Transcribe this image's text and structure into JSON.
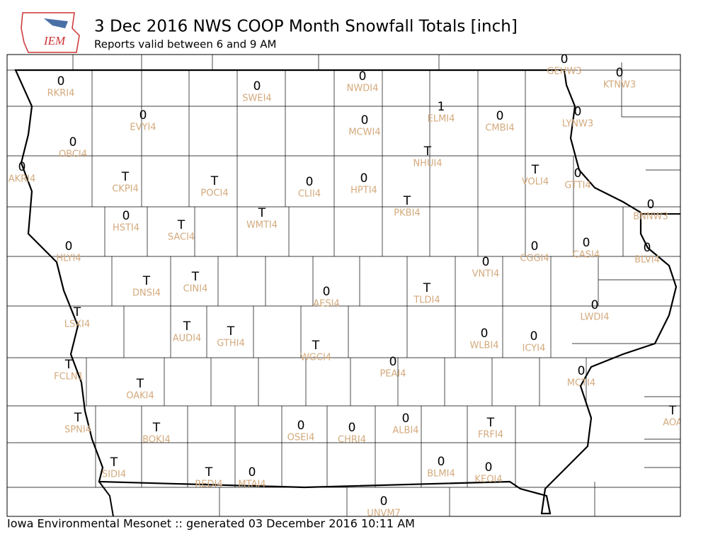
{
  "header": {
    "logo": "IEM",
    "title": "3 Dec 2016 NWS COOP Month Snowfall Totals [inch]",
    "subtitle": "Reports valid between 6 and 9 AM"
  },
  "footer": "Iowa Environmental Mesonet :: generated 03 December 2016 10:11 AM",
  "stations": [
    {
      "id": "RKRI4",
      "value": 0
    },
    {
      "id": "SWEI4",
      "value": 0
    },
    {
      "id": "NWDI4",
      "value": 0
    },
    {
      "id": "GEHW3",
      "value": 0
    },
    {
      "id": "KTNW3",
      "value": 0
    },
    {
      "id": "ELMI4",
      "value": 1
    },
    {
      "id": "CMBI4",
      "value": 0
    },
    {
      "id": "EVYI4",
      "value": 0
    },
    {
      "id": "MCWI4",
      "value": 0
    },
    {
      "id": "LYNW3",
      "value": 0
    },
    {
      "id": "OBCI4",
      "value": 0
    },
    {
      "id": "NHUI4",
      "value": "T"
    },
    {
      "id": "AKRI4",
      "value": 0
    },
    {
      "id": "CKPI4",
      "value": "T"
    },
    {
      "id": "POCI4",
      "value": "T"
    },
    {
      "id": "CLII4",
      "value": 0
    },
    {
      "id": "HPTI4",
      "value": 0
    },
    {
      "id": "VOLI4",
      "value": "T"
    },
    {
      "id": "GTTI4",
      "value": 0
    },
    {
      "id": "PKBI4",
      "value": "T"
    },
    {
      "id": "BNNW3",
      "value": 0
    },
    {
      "id": "HSTI4",
      "value": 0
    },
    {
      "id": "SACI4",
      "value": "T"
    },
    {
      "id": "WMTI4",
      "value": "T"
    },
    {
      "id": "HLYI4",
      "value": 0
    },
    {
      "id": "VNTI4",
      "value": 0
    },
    {
      "id": "CGGI4",
      "value": 0
    },
    {
      "id": "CASI4",
      "value": 0
    },
    {
      "id": "BLVI4",
      "value": 0
    },
    {
      "id": "DNSI4",
      "value": "T"
    },
    {
      "id": "CINI4",
      "value": "T"
    },
    {
      "id": "AESI4",
      "value": 0
    },
    {
      "id": "TLDI4",
      "value": "T"
    },
    {
      "id": "LWDI4",
      "value": 0
    },
    {
      "id": "LSXI4",
      "value": "T"
    },
    {
      "id": "AUDI4",
      "value": "T"
    },
    {
      "id": "GTHI4",
      "value": "T"
    },
    {
      "id": "WLBI4",
      "value": 0
    },
    {
      "id": "ICYI4",
      "value": 0
    },
    {
      "id": "WGCI4",
      "value": "T"
    },
    {
      "id": "PEAI4",
      "value": 0
    },
    {
      "id": "FCLN1",
      "value": "T"
    },
    {
      "id": "MCTI4",
      "value": 0
    },
    {
      "id": "OAKI4",
      "value": "T"
    },
    {
      "id": "AOA",
      "value": "T"
    },
    {
      "id": "SPNI4",
      "value": "T"
    },
    {
      "id": "BOKI4",
      "value": "T"
    },
    {
      "id": "OSEI4",
      "value": 0
    },
    {
      "id": "CHRI4",
      "value": 0
    },
    {
      "id": "ALBI4",
      "value": 0
    },
    {
      "id": "FRFI4",
      "value": "T"
    },
    {
      "id": "SIDI4",
      "value": "T"
    },
    {
      "id": "BLMI4",
      "value": 0
    },
    {
      "id": "KEOI4",
      "value": 0
    },
    {
      "id": "REDI4",
      "value": "T"
    },
    {
      "id": "MTAI4",
      "value": 0
    },
    {
      "id": "UNVM7",
      "value": 0
    }
  ]
}
